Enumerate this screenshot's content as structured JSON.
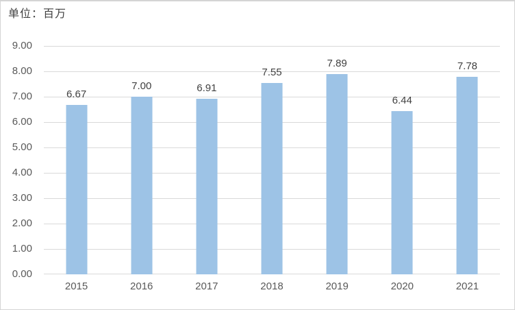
{
  "chart_data": {
    "type": "bar",
    "title": "单位：百万",
    "categories": [
      "2015",
      "2016",
      "2017",
      "2018",
      "2019",
      "2020",
      "2021"
    ],
    "values": [
      6.67,
      7.0,
      6.91,
      7.55,
      7.89,
      6.44,
      7.78
    ],
    "value_labels": [
      "6.67",
      "7.00",
      "6.91",
      "7.55",
      "7.89",
      "6.44",
      "7.78"
    ],
    "y_ticks": [
      "9.00",
      "8.00",
      "7.00",
      "6.00",
      "5.00",
      "4.00",
      "3.00",
      "2.00",
      "1.00",
      "0.00"
    ],
    "ylim": [
      0,
      9
    ],
    "xlabel": "",
    "ylabel": "",
    "grid": true,
    "legend": "none",
    "colors": {
      "bar": "#9DC3E6",
      "gridline": "#D9D9D9",
      "axis_text": "#595959",
      "data_label_text": "#404040",
      "unit_text": "#404040",
      "background": "#FFFFFF",
      "frame_border": "#D4D4D4"
    }
  }
}
